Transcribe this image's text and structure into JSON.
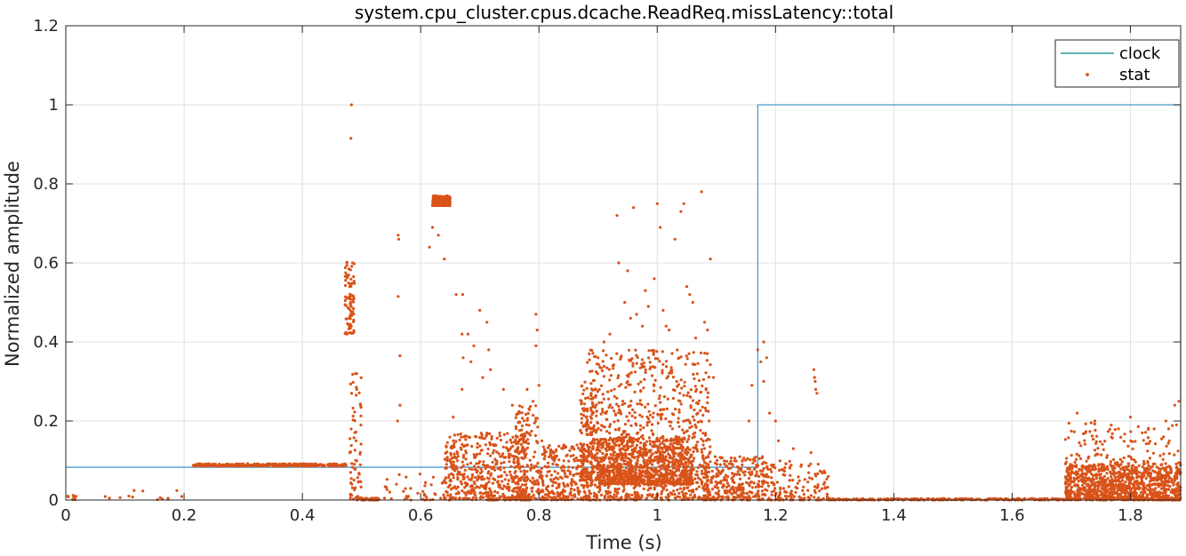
{
  "chart_data": {
    "type": "line",
    "title": "system.cpu_cluster.cpus.dcache.ReadReq.missLatency::total",
    "xlabel": "Time (s)",
    "ylabel": "Normalized amplitude",
    "xlim": [
      0,
      1.885
    ],
    "ylim": [
      0,
      1.2
    ],
    "xticks": [
      0,
      0.2,
      0.4,
      0.6,
      0.8,
      1,
      1.2,
      1.4,
      1.6,
      1.8
    ],
    "xtick_labels": [
      "0",
      "0.2",
      "0.4",
      "0.6",
      "0.8",
      "1",
      "1.2",
      "1.4",
      "1.6",
      "1.8"
    ],
    "yticks": [
      0,
      0.2,
      0.4,
      0.6,
      0.8,
      1,
      1.2
    ],
    "ytick_labels": [
      "0",
      "0.2",
      "0.4",
      "0.6",
      "0.8",
      "1",
      "1.2"
    ],
    "grid": true,
    "legend": {
      "placement": "top-right",
      "entries": [
        "clock",
        "stat"
      ]
    },
    "series": [
      {
        "name": "clock",
        "style": "step-line",
        "color": "#4B9BC8",
        "x": [
          0,
          1.17,
          1.17,
          1.885
        ],
        "y": [
          0.083,
          0.083,
          1.0,
          1.0
        ],
        "tail": {
          "x": 1.885,
          "y": 0.25
        }
      },
      {
        "name": "stat",
        "style": "scatter",
        "color": "#D95319",
        "clusters": [
          {
            "x0": 0.0,
            "x1": 0.02,
            "ymin": 0.0,
            "ymax": 0.012,
            "n": 10
          },
          {
            "x0": 0.05,
            "x1": 0.2,
            "ymin": 0.0,
            "ymax": 0.03,
            "n": 14
          },
          {
            "x0": 0.215,
            "x1": 0.475,
            "ymin": 0.086,
            "ymax": 0.092,
            "n": 420
          },
          {
            "x0": 0.472,
            "x1": 0.488,
            "ymin": 0.42,
            "ymax": 0.61,
            "n": 80
          },
          {
            "x0": 0.48,
            "x1": 0.5,
            "ymin": 0.0,
            "ymax": 0.34,
            "n": 70
          },
          {
            "x0": 0.5,
            "x1": 0.53,
            "ymin": 0.0,
            "ymax": 0.005,
            "n": 60
          },
          {
            "x0": 0.53,
            "x1": 0.64,
            "ymin": 0.0,
            "ymax": 0.07,
            "n": 40
          },
          {
            "x0": 0.62,
            "x1": 0.65,
            "ymin": 0.745,
            "ymax": 0.77,
            "n": 220
          },
          {
            "x0": 0.64,
            "x1": 0.78,
            "ymin": 0.0,
            "ymax": 0.17,
            "n": 520
          },
          {
            "x0": 0.76,
            "x1": 0.8,
            "ymin": 0.0,
            "ymax": 0.24,
            "n": 160
          },
          {
            "x0": 0.8,
            "x1": 0.88,
            "ymin": 0.0,
            "ymax": 0.14,
            "n": 260
          },
          {
            "x0": 0.87,
            "x1": 0.9,
            "ymin": 0.05,
            "ymax": 0.3,
            "n": 180
          },
          {
            "x0": 0.88,
            "x1": 1.09,
            "ymin": 0.0,
            "ymax": 0.38,
            "n": 900
          },
          {
            "x0": 0.9,
            "x1": 1.06,
            "ymin": 0.04,
            "ymax": 0.16,
            "n": 900
          },
          {
            "x0": 1.08,
            "x1": 1.18,
            "ymin": 0.0,
            "ymax": 0.11,
            "n": 300
          },
          {
            "x0": 1.18,
            "x1": 1.29,
            "ymin": 0.0,
            "ymax": 0.1,
            "n": 160
          },
          {
            "x0": 1.29,
            "x1": 1.69,
            "ymin": 0.0,
            "ymax": 0.004,
            "n": 260
          },
          {
            "x0": 1.69,
            "x1": 1.885,
            "ymin": 0.0,
            "ymax": 0.09,
            "n": 1100
          },
          {
            "x0": 1.69,
            "x1": 1.885,
            "ymin": 0.09,
            "ymax": 0.2,
            "n": 120
          }
        ],
        "points": [
          [
            0.483,
            1.0
          ],
          [
            0.482,
            0.915
          ],
          [
            0.485,
            0.6
          ],
          [
            0.48,
            0.54
          ],
          [
            0.49,
            0.32
          ],
          [
            0.492,
            0.28
          ],
          [
            0.562,
            0.67
          ],
          [
            0.563,
            0.66
          ],
          [
            0.562,
            0.515
          ],
          [
            0.565,
            0.365
          ],
          [
            0.565,
            0.24
          ],
          [
            0.561,
            0.2
          ],
          [
            0.559,
            0.04
          ],
          [
            0.625,
            0.745
          ],
          [
            0.62,
            0.69
          ],
          [
            0.615,
            0.64
          ],
          [
            0.63,
            0.67
          ],
          [
            0.64,
            0.61
          ],
          [
            0.66,
            0.52
          ],
          [
            0.671,
            0.52
          ],
          [
            0.67,
            0.42
          ],
          [
            0.672,
            0.36
          ],
          [
            0.68,
            0.42
          ],
          [
            0.7,
            0.48
          ],
          [
            0.712,
            0.45
          ],
          [
            0.715,
            0.38
          ],
          [
            0.718,
            0.33
          ],
          [
            0.69,
            0.39
          ],
          [
            0.685,
            0.35
          ],
          [
            0.705,
            0.31
          ],
          [
            0.655,
            0.21
          ],
          [
            0.67,
            0.28
          ],
          [
            0.74,
            0.28
          ],
          [
            0.755,
            0.24
          ],
          [
            0.78,
            0.28
          ],
          [
            0.79,
            0.25
          ],
          [
            0.795,
            0.47
          ],
          [
            0.797,
            0.43
          ],
          [
            0.795,
            0.39
          ],
          [
            0.8,
            0.29
          ],
          [
            0.805,
            0.15
          ],
          [
            0.88,
            0.21
          ],
          [
            0.9,
            0.36
          ],
          [
            0.91,
            0.4
          ],
          [
            0.92,
            0.42
          ],
          [
            0.925,
            0.34
          ],
          [
            0.932,
            0.72
          ],
          [
            0.935,
            0.6
          ],
          [
            0.945,
            0.5
          ],
          [
            0.95,
            0.58
          ],
          [
            0.955,
            0.46
          ],
          [
            0.96,
            0.74
          ],
          [
            0.965,
            0.47
          ],
          [
            0.975,
            0.44
          ],
          [
            0.98,
            0.53
          ],
          [
            0.985,
            0.49
          ],
          [
            0.995,
            0.56
          ],
          [
            1.0,
            0.75
          ],
          [
            1.005,
            0.69
          ],
          [
            1.01,
            0.48
          ],
          [
            1.015,
            0.44
          ],
          [
            1.02,
            0.43
          ],
          [
            1.03,
            0.66
          ],
          [
            1.04,
            0.73
          ],
          [
            1.045,
            0.75
          ],
          [
            1.05,
            0.54
          ],
          [
            1.055,
            0.52
          ],
          [
            1.06,
            0.5
          ],
          [
            1.065,
            0.41
          ],
          [
            1.075,
            0.78
          ],
          [
            1.08,
            0.45
          ],
          [
            1.085,
            0.43
          ],
          [
            1.09,
            0.61
          ],
          [
            1.095,
            0.31
          ],
          [
            1.17,
            0.38
          ],
          [
            1.175,
            0.35
          ],
          [
            1.18,
            0.4
          ],
          [
            1.185,
            0.36
          ],
          [
            1.18,
            0.3
          ],
          [
            1.16,
            0.29
          ],
          [
            1.155,
            0.2
          ],
          [
            1.19,
            0.22
          ],
          [
            1.2,
            0.2
          ],
          [
            1.205,
            0.15
          ],
          [
            1.23,
            0.13
          ],
          [
            1.265,
            0.33
          ],
          [
            1.266,
            0.31
          ],
          [
            1.267,
            0.3
          ],
          [
            1.268,
            0.28
          ],
          [
            1.27,
            0.27
          ],
          [
            1.26,
            0.12
          ],
          [
            1.71,
            0.22
          ],
          [
            1.74,
            0.2
          ],
          [
            1.78,
            0.18
          ],
          [
            1.8,
            0.21
          ],
          [
            1.82,
            0.17
          ],
          [
            1.84,
            0.18
          ],
          [
            1.86,
            0.2
          ],
          [
            1.875,
            0.24
          ],
          [
            1.882,
            0.25
          ],
          [
            1.878,
            0.19
          ]
        ]
      }
    ]
  }
}
